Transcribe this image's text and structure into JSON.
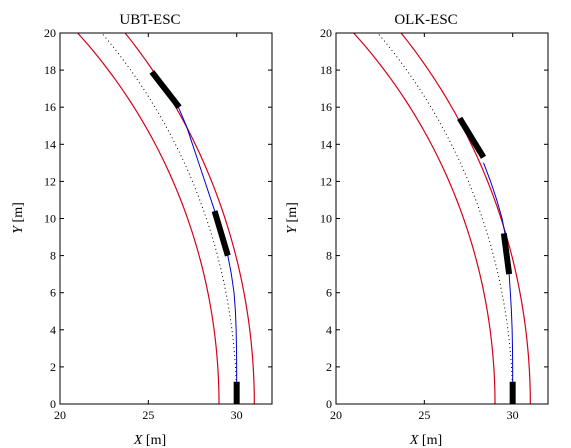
{
  "chart_data": [
    {
      "type": "line",
      "title": "UBT-ESC",
      "xlabel_var": "X",
      "xlabel_unit": "[m]",
      "ylabel_var": "Y",
      "ylabel_unit": "[m]",
      "xlim": [
        20,
        32
      ],
      "ylim": [
        0,
        20
      ],
      "xticks": [
        20,
        25,
        30
      ],
      "yticks": [
        0,
        2,
        4,
        6,
        8,
        10,
        12,
        14,
        16,
        18,
        20
      ],
      "grid": false,
      "lane_radius": {
        "inner": 29,
        "center": 30,
        "outer": 31
      },
      "curve_center": [
        0,
        0
      ],
      "colors": {
        "lane_edge": "#d6001c",
        "centerline": "#000000",
        "trajectory": "#0000cc",
        "vehicle": "#000000"
      },
      "trajectory": [
        [
          30.0,
          0.0
        ],
        [
          30.0,
          1.0
        ],
        [
          30.0,
          2.0
        ],
        [
          29.99,
          3.0
        ],
        [
          29.97,
          4.0
        ],
        [
          29.93,
          5.0
        ],
        [
          29.85,
          6.0
        ],
        [
          29.7,
          7.0
        ],
        [
          29.5,
          8.0
        ],
        [
          29.23,
          9.0
        ],
        [
          28.9,
          10.0
        ],
        [
          28.55,
          11.0
        ],
        [
          28.2,
          12.0
        ],
        [
          27.85,
          13.0
        ],
        [
          27.5,
          14.0
        ],
        [
          27.15,
          15.0
        ],
        [
          26.7,
          16.0
        ]
      ],
      "vehicles": [
        {
          "x1": 30.0,
          "y1": 0.0,
          "x2": 30.0,
          "y2": 1.2
        },
        {
          "x1": 29.5,
          "y1": 8.0,
          "x2": 28.75,
          "y2": 10.4
        },
        {
          "x1": 26.75,
          "y1": 16.0,
          "x2": 25.2,
          "y2": 17.9
        }
      ]
    },
    {
      "type": "line",
      "title": "OLK-ESC",
      "xlabel_var": "X",
      "xlabel_unit": "[m]",
      "ylabel_var": "Y",
      "ylabel_unit": "[m]",
      "xlim": [
        20,
        32
      ],
      "ylim": [
        0,
        20
      ],
      "xticks": [
        20,
        25,
        30
      ],
      "yticks": [
        0,
        2,
        4,
        6,
        8,
        10,
        12,
        14,
        16,
        18,
        20
      ],
      "grid": false,
      "lane_radius": {
        "inner": 29,
        "center": 30,
        "outer": 31
      },
      "curve_center": [
        0,
        0
      ],
      "colors": {
        "lane_edge": "#d6001c",
        "centerline": "#000000",
        "trajectory": "#0000cc",
        "vehicle": "#000000"
      },
      "trajectory": [
        [
          30.0,
          0.0
        ],
        [
          30.0,
          1.0
        ],
        [
          30.0,
          2.0
        ],
        [
          29.99,
          3.0
        ],
        [
          29.97,
          4.0
        ],
        [
          29.93,
          5.0
        ],
        [
          29.87,
          6.0
        ],
        [
          29.8,
          7.0
        ],
        [
          29.72,
          8.0
        ],
        [
          29.6,
          9.0
        ],
        [
          29.4,
          10.0
        ],
        [
          29.1,
          11.0
        ],
        [
          28.75,
          12.0
        ],
        [
          28.35,
          13.0
        ]
      ],
      "vehicles": [
        {
          "x1": 30.0,
          "y1": 0.0,
          "x2": 30.0,
          "y2": 1.2
        },
        {
          "x1": 29.8,
          "y1": 7.0,
          "x2": 29.5,
          "y2": 9.2
        },
        {
          "x1": 28.35,
          "y1": 13.3,
          "x2": 27.0,
          "y2": 15.4
        }
      ]
    }
  ]
}
